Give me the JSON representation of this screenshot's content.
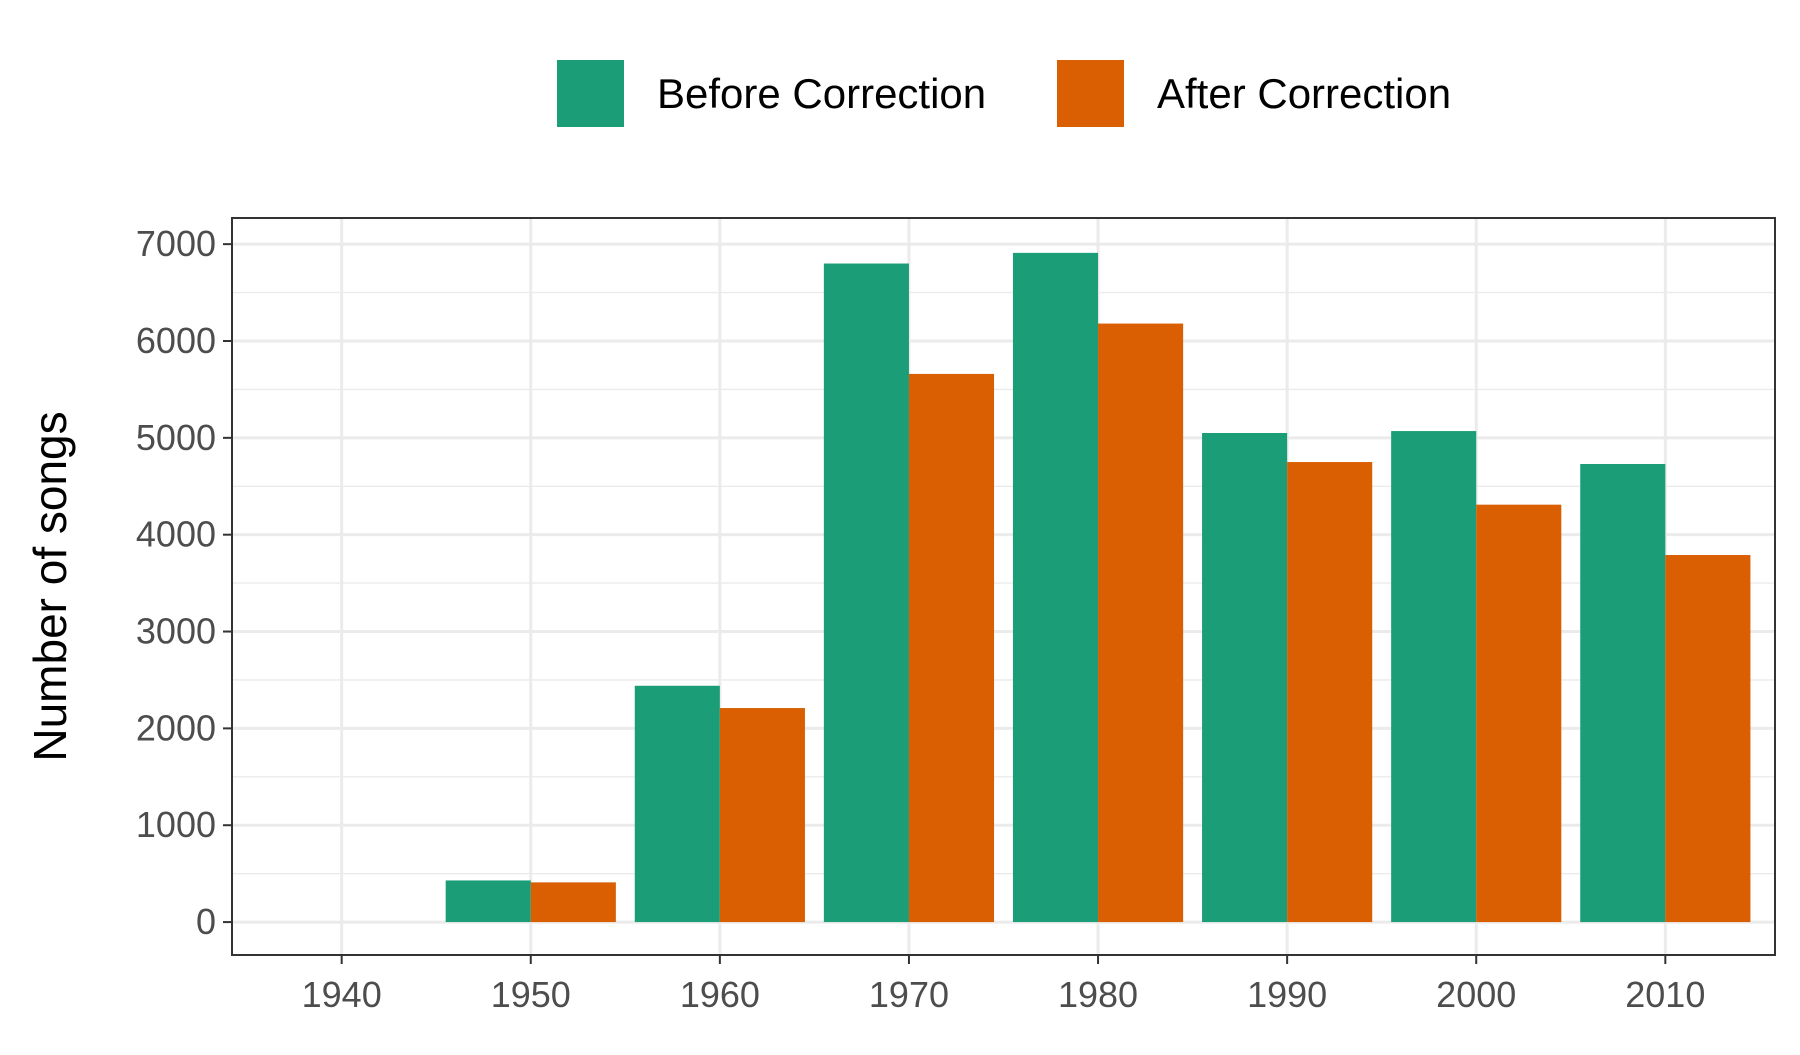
{
  "chart_data": {
    "type": "bar",
    "title": "",
    "xlabel": "",
    "ylabel": "Number of songs",
    "categories": [
      "1940",
      "1950",
      "1960",
      "1970",
      "1980",
      "1990",
      "2000",
      "2010"
    ],
    "series": [
      {
        "name": "Before Correction",
        "color": "#1b9e77",
        "values": [
          0,
          430,
          2440,
          6800,
          6910,
          5050,
          5070,
          4730
        ]
      },
      {
        "name": "After Correction",
        "color": "#d95f02",
        "values": [
          0,
          410,
          2210,
          5660,
          6180,
          4750,
          4310,
          3790
        ]
      }
    ],
    "yticks": [
      0,
      1000,
      2000,
      3000,
      4000,
      5000,
      6000,
      7000
    ],
    "ylim": [
      -340,
      7270
    ],
    "xlim": [
      1934.2,
      2015.8
    ],
    "grid": true,
    "legend_position": "top"
  }
}
